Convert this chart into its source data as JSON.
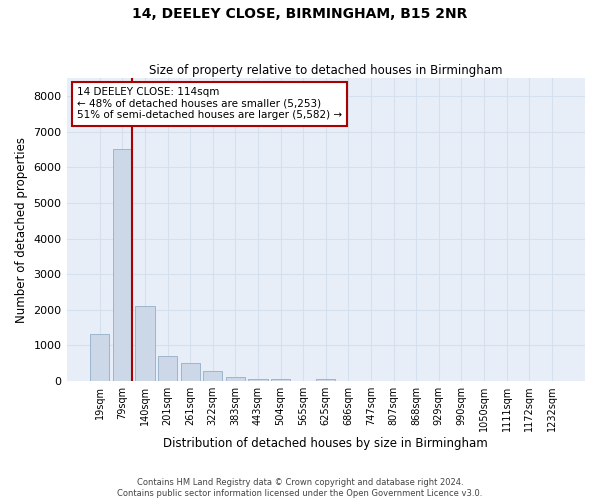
{
  "title": "14, DEELEY CLOSE, BIRMINGHAM, B15 2NR",
  "subtitle": "Size of property relative to detached houses in Birmingham",
  "xlabel": "Distribution of detached houses by size in Birmingham",
  "ylabel": "Number of detached properties",
  "footer_line1": "Contains HM Land Registry data © Crown copyright and database right 2024.",
  "footer_line2": "Contains public sector information licensed under the Open Government Licence v3.0.",
  "bar_color": "#ccd8e8",
  "bar_edgecolor": "#93aec8",
  "vline_color": "#aa0000",
  "annotation_text": "14 DEELEY CLOSE: 114sqm\n← 48% of detached houses are smaller (5,253)\n51% of semi-detached houses are larger (5,582) →",
  "annotation_box_edgecolor": "#aa0000",
  "categories": [
    "19sqm",
    "79sqm",
    "140sqm",
    "201sqm",
    "261sqm",
    "322sqm",
    "383sqm",
    "443sqm",
    "504sqm",
    "565sqm",
    "625sqm",
    "686sqm",
    "747sqm",
    "807sqm",
    "868sqm",
    "929sqm",
    "990sqm",
    "1050sqm",
    "1111sqm",
    "1172sqm",
    "1232sqm"
  ],
  "values": [
    1310,
    6500,
    2100,
    690,
    500,
    280,
    110,
    65,
    65,
    0,
    65,
    0,
    0,
    0,
    0,
    0,
    0,
    0,
    0,
    0,
    0
  ],
  "ylim": [
    0,
    8500
  ],
  "yticks": [
    0,
    1000,
    2000,
    3000,
    4000,
    5000,
    6000,
    7000,
    8000
  ],
  "grid_color": "#d5e0ee",
  "bg_color": "#e8eef8",
  "vline_bar_index": 1,
  "vline_right_edge": true
}
